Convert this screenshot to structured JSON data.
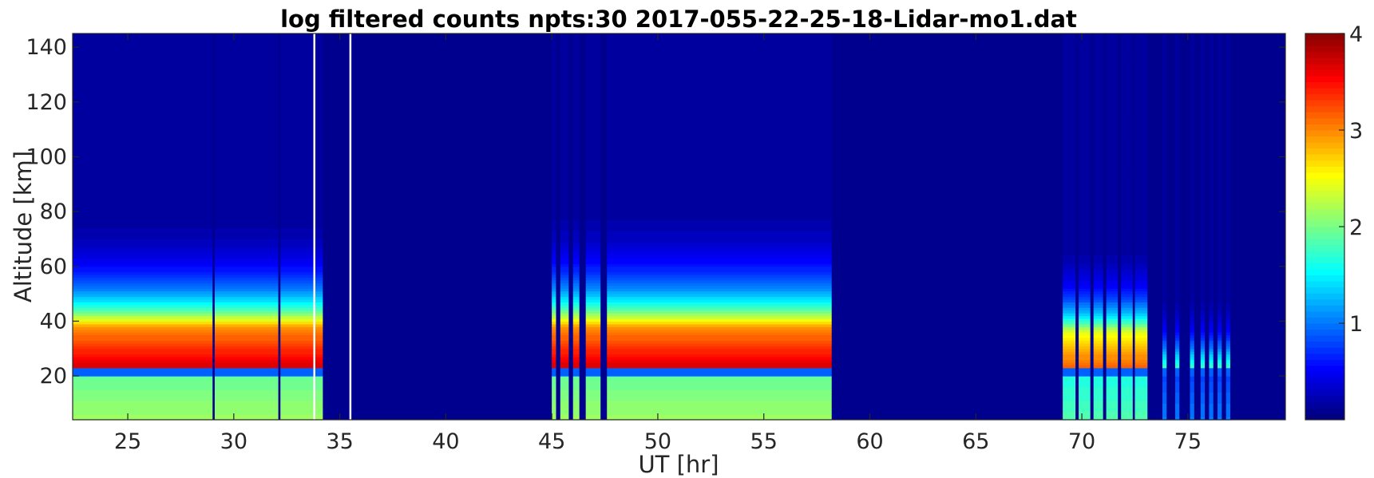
{
  "chart_data": {
    "type": "heatmap",
    "title": "log filtered counts  npts:30  2017-055-22-25-18-Lidar-mo1.dat",
    "xlabel": "UT [hr]",
    "ylabel": "Altitude [km]",
    "xlim": [
      22.4,
      79.6
    ],
    "ylim": [
      4,
      145
    ],
    "xticks": [
      25,
      30,
      35,
      40,
      45,
      50,
      55,
      60,
      65,
      70,
      75
    ],
    "yticks": [
      20,
      40,
      60,
      80,
      100,
      120,
      140
    ],
    "colorbar": {
      "clim": [
        0,
        4
      ],
      "ticks": [
        1,
        2,
        3,
        4
      ],
      "colormap": "jet"
    },
    "data_segments": [
      {
        "start": 22.4,
        "end": 34.2,
        "peak": 3.7,
        "layer_top_km": 38,
        "decay_km": 13
      },
      {
        "start": 45.0,
        "end": 58.2,
        "peak": 3.7,
        "layer_top_km": 38,
        "decay_km": 14
      },
      {
        "start": 69.1,
        "end": 73.1,
        "peak": 3.2,
        "layer_top_km": 36,
        "decay_km": 11
      },
      {
        "start": 73.1,
        "end": 77.0,
        "peak": 1.8,
        "layer_top_km": 30,
        "decay_km": 10
      }
    ],
    "gaps": [
      {
        "start": 29.0,
        "end": 29.1
      },
      {
        "start": 32.1,
        "end": 32.2
      },
      {
        "start": 45.2,
        "end": 45.4
      },
      {
        "start": 45.8,
        "end": 46.0
      },
      {
        "start": 46.3,
        "end": 46.6
      },
      {
        "start": 47.3,
        "end": 47.6
      },
      {
        "start": 69.7,
        "end": 69.85
      },
      {
        "start": 70.4,
        "end": 70.55
      },
      {
        "start": 71.0,
        "end": 71.15
      },
      {
        "start": 71.7,
        "end": 71.85
      },
      {
        "start": 72.4,
        "end": 72.5
      },
      {
        "start": 73.1,
        "end": 73.8
      },
      {
        "start": 74.0,
        "end": 74.4
      },
      {
        "start": 74.6,
        "end": 75.1
      },
      {
        "start": 75.3,
        "end": 75.6
      },
      {
        "start": 75.8,
        "end": 76.0
      },
      {
        "start": 76.2,
        "end": 76.4
      },
      {
        "start": 76.6,
        "end": 76.8
      }
    ],
    "white_lines": [
      33.8,
      35.5
    ]
  }
}
